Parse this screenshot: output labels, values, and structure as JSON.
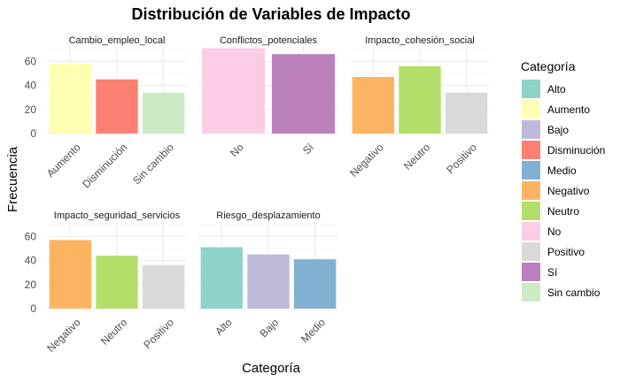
{
  "chart_data": {
    "type": "bar",
    "title": "Distribución de Variables de Impacto",
    "xlabel": "Categoría",
    "ylabel": "Frecuencia",
    "ylim": [
      0,
      72
    ],
    "yticks": [
      0,
      20,
      40,
      60
    ],
    "grid": true,
    "legend": {
      "title": "Categoría",
      "placement": "right",
      "items": [
        {
          "label": "Alto",
          "color": "#8DD3C7"
        },
        {
          "label": "Aumento",
          "color": "#FFFFB3"
        },
        {
          "label": "Bajo",
          "color": "#BEBADA"
        },
        {
          "label": "Disminución",
          "color": "#FB8072"
        },
        {
          "label": "Medio",
          "color": "#80B1D3"
        },
        {
          "label": "Negativo",
          "color": "#FDB462"
        },
        {
          "label": "Neutro",
          "color": "#B3DE69"
        },
        {
          "label": "No",
          "color": "#FCCDE5"
        },
        {
          "label": "Positivo",
          "color": "#D9D9D9"
        },
        {
          "label": "Sí",
          "color": "#BC80BD"
        },
        {
          "label": "Sin cambio",
          "color": "#CCEBC5"
        }
      ]
    },
    "facets": [
      {
        "name": "Cambio_empleo_local",
        "categories": [
          "Aumento",
          "Disminución",
          "Sin cambio"
        ],
        "values": [
          58,
          45,
          34
        ]
      },
      {
        "name": "Conflictos_potenciales",
        "categories": [
          "No",
          "Sí"
        ],
        "values": [
          71,
          66
        ]
      },
      {
        "name": "Impacto_cohesión_social",
        "categories": [
          "Negativo",
          "Neutro",
          "Positivo"
        ],
        "values": [
          47,
          56,
          34
        ]
      },
      {
        "name": "Impacto_seguridad_servicios",
        "categories": [
          "Negativo",
          "Neutro",
          "Positivo"
        ],
        "values": [
          57,
          44,
          36
        ]
      },
      {
        "name": "Riesgo_desplazamiento",
        "categories": [
          "Alto",
          "Bajo",
          "Medio"
        ],
        "values": [
          51,
          45,
          41
        ]
      }
    ]
  }
}
